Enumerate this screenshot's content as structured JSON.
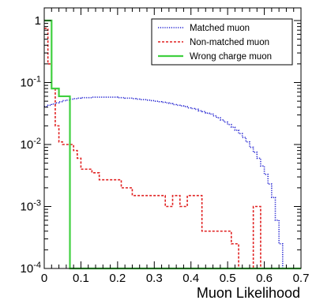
{
  "chart_data": {
    "type": "line",
    "style": "step-histogram",
    "title": "",
    "xlabel": "Muon Likelihood",
    "ylabel": "",
    "xlim": [
      0,
      0.7
    ],
    "ylim": [
      0.0001,
      1.6
    ],
    "yscale": "log",
    "grid": false,
    "legend_position": "top-right",
    "x_ticks": [
      0,
      0.1,
      0.2,
      0.3,
      0.4,
      0.5,
      0.6,
      0.7
    ],
    "x_tick_labels": [
      "0",
      "0.1",
      "0.2",
      "0.3",
      "0.4",
      "0.5",
      "0.6",
      "0.7"
    ],
    "y_ticks": [
      0.0001,
      0.001,
      0.01,
      0.1,
      1
    ],
    "y_tick_labels": [
      {
        "base": "10",
        "exp": "-4"
      },
      {
        "base": "10",
        "exp": "-3"
      },
      {
        "base": "10",
        "exp": "-2"
      },
      {
        "base": "10",
        "exp": "-1"
      },
      {
        "base": "1",
        "exp": ""
      }
    ],
    "series": [
      {
        "name": "Matched muon",
        "color": "#2020d0",
        "dash": "dotted",
        "edges": [
          0,
          0.01,
          0.02,
          0.03,
          0.04,
          0.05,
          0.06,
          0.07,
          0.08,
          0.09,
          0.1,
          0.11,
          0.12,
          0.13,
          0.14,
          0.15,
          0.16,
          0.17,
          0.18,
          0.19,
          0.2,
          0.21,
          0.22,
          0.23,
          0.24,
          0.25,
          0.26,
          0.27,
          0.28,
          0.29,
          0.3,
          0.31,
          0.32,
          0.33,
          0.34,
          0.35,
          0.36,
          0.37,
          0.38,
          0.39,
          0.4,
          0.41,
          0.42,
          0.43,
          0.44,
          0.45,
          0.46,
          0.47,
          0.48,
          0.49,
          0.5,
          0.51,
          0.52,
          0.53,
          0.54,
          0.55,
          0.56,
          0.57,
          0.58,
          0.59,
          0.6,
          0.61,
          0.62,
          0.63,
          0.64,
          0.65,
          0.66,
          0.67,
          0.68,
          0.69,
          0.7
        ],
        "values": [
          0.041,
          0.043,
          0.045,
          0.047,
          0.049,
          0.051,
          0.052,
          0.054,
          0.055,
          0.056,
          0.057,
          0.057,
          0.057,
          0.058,
          0.058,
          0.058,
          0.058,
          0.058,
          0.058,
          0.058,
          0.057,
          0.057,
          0.056,
          0.056,
          0.055,
          0.054,
          0.053,
          0.053,
          0.052,
          0.051,
          0.05,
          0.049,
          0.048,
          0.047,
          0.046,
          0.044,
          0.043,
          0.042,
          0.041,
          0.039,
          0.038,
          0.037,
          0.035,
          0.034,
          0.032,
          0.031,
          0.029,
          0.027,
          0.025,
          0.023,
          0.021,
          0.019,
          0.017,
          0.015,
          0.013,
          0.011,
          0.009,
          0.0075,
          0.006,
          0.0045,
          0.0033,
          0.0023,
          0.0014,
          0.0006,
          0.00025,
          0.0001,
          0.0001,
          0.0001,
          0.0001,
          0.0001
        ]
      },
      {
        "name": "Non-matched muon",
        "color": "#e02020",
        "dash": "dashed",
        "edges": [
          0,
          0.01,
          0.02,
          0.03,
          0.04,
          0.05,
          0.06,
          0.07,
          0.08,
          0.09,
          0.1,
          0.11,
          0.12,
          0.13,
          0.14,
          0.15,
          0.16,
          0.17,
          0.18,
          0.19,
          0.2,
          0.21,
          0.22,
          0.23,
          0.24,
          0.25,
          0.26,
          0.27,
          0.28,
          0.29,
          0.3,
          0.31,
          0.32,
          0.33,
          0.34,
          0.35,
          0.36,
          0.37,
          0.38,
          0.39,
          0.4,
          0.41,
          0.42,
          0.43,
          0.44,
          0.45,
          0.46,
          0.47,
          0.48,
          0.49,
          0.5,
          0.51,
          0.52,
          0.53,
          0.54,
          0.55,
          0.56,
          0.57,
          0.58,
          0.59,
          0.6,
          0.61,
          0.62,
          0.63,
          0.64,
          0.65,
          0.66,
          0.67,
          0.68,
          0.69,
          0.7
        ],
        "values": [
          0.75,
          0.2,
          0.08,
          0.02,
          0.011,
          0.01,
          0.01,
          0.01,
          0.008,
          0.006,
          0.004,
          0.004,
          0.004,
          0.0035,
          0.0035,
          0.0027,
          0.0027,
          0.0027,
          0.0027,
          0.0027,
          0.0027,
          0.002,
          0.002,
          0.002,
          0.0015,
          0.0015,
          0.0015,
          0.0015,
          0.0015,
          0.0015,
          0.0015,
          0.0015,
          0.0015,
          0.001,
          0.001,
          0.0015,
          0.0015,
          0.001,
          0.001,
          0.0015,
          0.0015,
          0.0015,
          0.0015,
          0.0004,
          0.0004,
          0.0004,
          0.0004,
          0.0004,
          0.0004,
          0.0004,
          0.0004,
          0.00025,
          0.00025,
          0.0001,
          0.0001,
          0.0001,
          0.0001,
          0.001,
          0.001,
          0.0001,
          0.0001,
          0.0001,
          0.0001,
          0.0001,
          0.0001,
          0.0001,
          0.0001,
          0.0001,
          0.0001,
          0.0001
        ]
      },
      {
        "name": "Wrong charge muon",
        "color": "#40d040",
        "dash": "solid",
        "edges": [
          0,
          0.02,
          0.04,
          0.06,
          0.07,
          0.7
        ],
        "values": [
          1.0,
          0.08,
          0.06,
          0.06,
          0.0001
        ]
      }
    ]
  }
}
